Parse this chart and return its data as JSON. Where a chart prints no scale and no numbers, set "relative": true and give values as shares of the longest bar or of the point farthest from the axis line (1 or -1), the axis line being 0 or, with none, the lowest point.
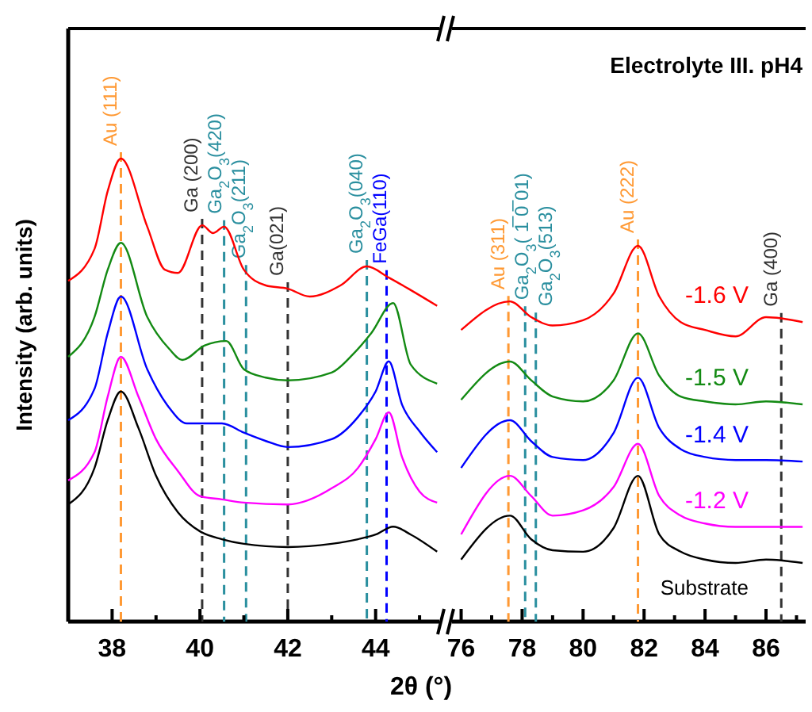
{
  "chart_data": [
    {
      "type": "line",
      "xlabel": "2θ (°)",
      "ylabel": "Intensity (arb. units)",
      "relative": true,
      "tick_labels": "x",
      "xlim": [
        37,
        45.45
      ],
      "xticks": [
        {
          "value": 37,
          "label": null
        },
        38,
        {
          "value": 39,
          "label": null
        },
        40,
        {
          "value": 41,
          "label": null
        },
        42,
        {
          "value": 43,
          "label": null
        },
        44,
        {
          "value": 45,
          "label": null
        }
      ],
      "series": [
        {
          "color": "#ff0000",
          "x": [
            37,
            37.6,
            37.9,
            38.2,
            38.8,
            39.2,
            39.5,
            40.05,
            40.3,
            40.55,
            41,
            41.5,
            42,
            42.5,
            43.2,
            43.8,
            44.3,
            44.8,
            45.4
          ],
          "values": [
            0.736,
            0.805,
            0.93,
            1,
            0.853,
            0.76,
            0.753,
            0.856,
            0.839,
            0.853,
            0.76,
            0.726,
            0.719,
            0.702,
            0.726,
            0.767,
            0.743,
            0.716,
            0.682
          ]
        },
        {
          "color": "#138a13",
          "x": [
            37,
            37.6,
            37.9,
            38.2,
            38.8,
            39.3,
            39.6,
            40.1,
            40.6,
            41,
            41.5,
            42,
            43,
            43.5,
            43.9,
            44.4,
            44.8,
            45.4
          ],
          "values": [
            0.572,
            0.658,
            0.76,
            0.818,
            0.658,
            0.589,
            0.565,
            0.596,
            0.606,
            0.545,
            0.527,
            0.521,
            0.538,
            0.579,
            0.623,
            0.688,
            0.555,
            0.514
          ]
        },
        {
          "color": "#0000ff",
          "x": [
            37,
            37.6,
            37.9,
            38.2,
            38.8,
            39.3,
            39.7,
            40.1,
            40.5,
            41,
            41.5,
            42,
            43,
            43.6,
            44,
            44.3,
            44.6,
            45,
            45.4
          ],
          "values": [
            0.435,
            0.503,
            0.623,
            0.702,
            0.545,
            0.462,
            0.428,
            0.428,
            0.428,
            0.408,
            0.39,
            0.377,
            0.394,
            0.442,
            0.497,
            0.562,
            0.469,
            0.411,
            0.366
          ]
        },
        {
          "color": "#ff00ff",
          "x": [
            37,
            37.6,
            37.9,
            38.2,
            38.6,
            39,
            39.5,
            40,
            40.5,
            41,
            42,
            43,
            43.6,
            44,
            44.3,
            44.6,
            45,
            45.4
          ],
          "values": [
            0.305,
            0.366,
            0.486,
            0.572,
            0.486,
            0.394,
            0.325,
            0.271,
            0.264,
            0.257,
            0.253,
            0.288,
            0.332,
            0.394,
            0.452,
            0.356,
            0.281,
            0.257
          ]
        },
        {
          "color": "#000000",
          "x": [
            37,
            37.6,
            37.9,
            38.2,
            38.6,
            39,
            39.5,
            40,
            40.5,
            41,
            42,
            43,
            43.6,
            44,
            44.4,
            44.8,
            45.4
          ],
          "values": [
            0.253,
            0.332,
            0.435,
            0.497,
            0.418,
            0.315,
            0.236,
            0.195,
            0.178,
            0.168,
            0.161,
            0.168,
            0.178,
            0.188,
            0.205,
            0.188,
            0.151
          ]
        }
      ],
      "ref_lines": [
        {
          "axis": "x",
          "value": 38.2,
          "label": "Au (111)",
          "color": "#ff9933",
          "line_style": "dashed"
        },
        {
          "axis": "x",
          "value": 40.05,
          "label": "Ga (200)",
          "color": "#333333",
          "line_style": "dashed"
        },
        {
          "axis": "x",
          "value": 40.55,
          "label": "Ga$_{2}$O$_{3}$(420)",
          "color": "#2a8f9f",
          "line_style": "dashed"
        },
        {
          "axis": "x",
          "value": 41.05,
          "label": "Ga$_{2}$O$_{3}$(211)",
          "color": "#2a8f9f",
          "line_style": "dashed"
        },
        {
          "axis": "x",
          "value": 42,
          "label": "Ga(021)",
          "color": "#333333",
          "line_style": "dashed"
        },
        {
          "axis": "x",
          "value": 43.8,
          "label": "Ga$_{2}$O$_{3}$(040)",
          "color": "#2a8f9f",
          "line_style": "dashed"
        },
        {
          "axis": "x",
          "value": 44.25,
          "label": "FeGa(110)",
          "color": "#0000ff",
          "line_style": "dashed"
        }
      ]
    },
    {
      "type": "line",
      "title": "Electrolyte III. pH4",
      "relative": true,
      "tick_labels": "x",
      "xlim": [
        75.7,
        87.3
      ],
      "xticks": [
        76,
        {
          "value": 77,
          "label": null
        },
        78,
        {
          "value": 79,
          "label": null
        },
        80,
        {
          "value": 81,
          "label": null
        },
        82,
        {
          "value": 83,
          "label": null
        },
        84,
        {
          "value": 85,
          "label": null
        },
        86,
        {
          "value": 87,
          "label": null
        }
      ],
      "series": [
        {
          "name": "-1.6 V",
          "color": "#ff0000",
          "x": [
            76,
            77.6,
            78.3,
            79,
            80,
            81,
            81.8,
            82.5,
            83.2,
            84,
            85,
            86,
            87.2
          ],
          "values": [
            0.776,
            0.852,
            0.81,
            0.788,
            0.802,
            0.873,
            1,
            0.865,
            0.797,
            0.776,
            0.759,
            0.81,
            0.797
          ]
        },
        {
          "name": "-1.5 V",
          "color": "#138a13",
          "x": [
            76,
            77.6,
            78.3,
            79,
            80,
            81,
            81.8,
            82.5,
            83.2,
            84,
            85,
            86,
            87.2
          ],
          "values": [
            0.59,
            0.692,
            0.642,
            0.599,
            0.586,
            0.642,
            0.767,
            0.654,
            0.599,
            0.586,
            0.578,
            0.586,
            0.578
          ]
        },
        {
          "name": "-1.4 V",
          "color": "#0000ff",
          "x": [
            76,
            77.6,
            78.3,
            79,
            80,
            81,
            81.8,
            82.5,
            83.2,
            84,
            85,
            86,
            87.2
          ],
          "values": [
            0.409,
            0.536,
            0.48,
            0.438,
            0.43,
            0.502,
            0.649,
            0.515,
            0.459,
            0.438,
            0.43,
            0.43,
            0.426
          ]
        },
        {
          "name": "-1.2 V",
          "color": "#ff00ff",
          "x": [
            76,
            77.6,
            78.3,
            79,
            80,
            81,
            81.8,
            82.5,
            83.2,
            84,
            85,
            86,
            87.2
          ],
          "values": [
            0.232,
            0.388,
            0.334,
            0.282,
            0.296,
            0.358,
            0.473,
            0.334,
            0.282,
            0.261,
            0.252,
            0.252,
            0.252
          ]
        },
        {
          "name": "Substrate",
          "color": "#000000",
          "x": [
            76,
            77.6,
            78.3,
            79,
            80,
            81,
            81.8,
            82.5,
            83.2,
            84,
            85,
            86,
            87.2
          ],
          "values": [
            0.165,
            0.282,
            0.219,
            0.19,
            0.186,
            0.249,
            0.388,
            0.232,
            0.186,
            0.165,
            0.156,
            0.165,
            0.156
          ]
        }
      ],
      "ref_lines": [
        {
          "axis": "x",
          "value": 77.55,
          "label": "Au (311)",
          "color": "#ff9933",
          "line_style": "dashed"
        },
        {
          "axis": "x",
          "value": 78.1,
          "label": "Ga$_{2}$O$_{3}$( 1̅ 0̅ 01)",
          "color": "#2a8f9f",
          "line_style": "dashed"
        },
        {
          "axis": "x",
          "value": 78.45,
          "label": "Ga$_{2}$O$_{3}$(513)",
          "color": "#2a8f9f",
          "line_style": "dashed"
        },
        {
          "axis": "x",
          "value": 81.8,
          "label": "Au (222)",
          "color": "#ff9933",
          "line_style": "dashed"
        },
        {
          "axis": "x",
          "value": 86.5,
          "label": "Ga (400)",
          "color": "#333333",
          "line_style": "dashed"
        }
      ]
    }
  ]
}
